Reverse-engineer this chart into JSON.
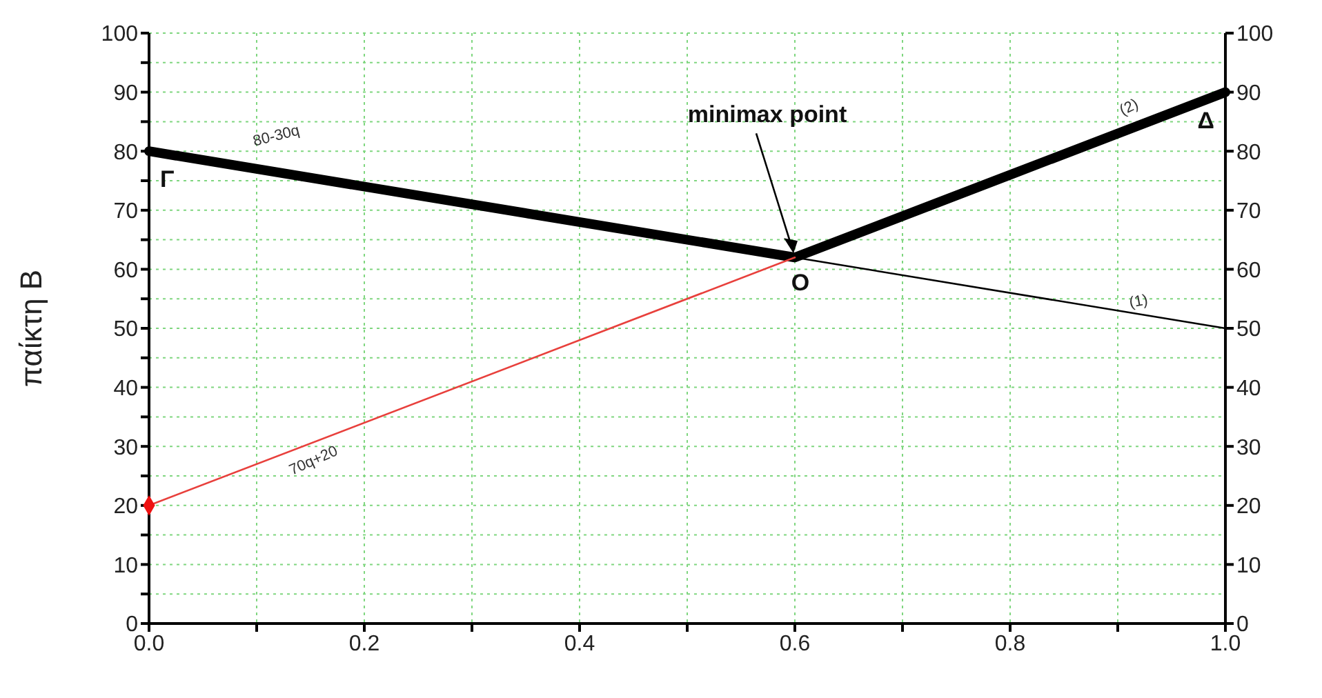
{
  "chart_data": {
    "type": "line",
    "ylabel": "παίκτη Β",
    "xlim": [
      0,
      1
    ],
    "xticks": [
      {
        "value": 0,
        "label": "0.0"
      },
      {
        "value": 0.1,
        "label": null
      },
      {
        "value": 0.2,
        "label": "0.2"
      },
      {
        "value": 0.3,
        "label": null
      },
      {
        "value": 0.4,
        "label": "0.4"
      },
      {
        "value": 0.5,
        "label": null
      },
      {
        "value": 0.6,
        "label": "0.6"
      },
      {
        "value": 0.7,
        "label": null
      },
      {
        "value": 0.8,
        "label": "0.8"
      },
      {
        "value": 0.9,
        "label": null
      },
      {
        "value": 1,
        "label": "1.0"
      }
    ],
    "ylim": [
      0,
      100
    ],
    "yticks": [
      0,
      {
        "value": 5,
        "label": null
      },
      10,
      {
        "value": 15,
        "label": null
      },
      20,
      {
        "value": 25,
        "label": null
      },
      30,
      {
        "value": 35,
        "label": null
      },
      40,
      {
        "value": 45,
        "label": null
      },
      50,
      {
        "value": 55,
        "label": null
      },
      60,
      {
        "value": 65,
        "label": null
      },
      70,
      {
        "value": 75,
        "label": null
      },
      80,
      {
        "value": 85,
        "label": null
      },
      90,
      {
        "value": 95,
        "label": null
      },
      100
    ],
    "y2lim": [
      0,
      100
    ],
    "y2ticks": [
      0,
      10,
      20,
      30,
      40,
      50,
      60,
      70,
      80,
      90,
      100
    ],
    "grid": true,
    "legend": false,
    "line_style": "solid",
    "series": [
      {
        "color": "#000000",
        "x": [
          0,
          0.6,
          1
        ],
        "values": [
          80,
          62,
          90
        ]
      },
      {
        "color": "#000000",
        "x": [
          0.6,
          1
        ],
        "values": [
          62,
          50
        ]
      },
      {
        "color": "#e8403c",
        "x": [
          0,
          0.6
        ],
        "values": [
          20,
          62
        ]
      },
      {
        "type": "scatter",
        "marker": "diamond",
        "color": "#ee1111",
        "x": [
          0
        ],
        "values": [
          20
        ]
      }
    ],
    "annotations": [
      {
        "text": "80-30q",
        "x": 0.08,
        "y": 77.6
      },
      {
        "text": "70q+20",
        "x": 0.12,
        "y": 28.4
      },
      {
        "text": "(1)",
        "x": 0.92,
        "y": 52.4
      },
      {
        "text": "(2)",
        "x": 0.92,
        "y": 84.4
      },
      {
        "text": "Γ",
        "x": 0,
        "y": 80
      },
      {
        "text": "Δ",
        "x": 1,
        "y": 90
      },
      {
        "text": "O",
        "x": 0.6,
        "y": 62
      },
      "minimax point"
    ]
  }
}
